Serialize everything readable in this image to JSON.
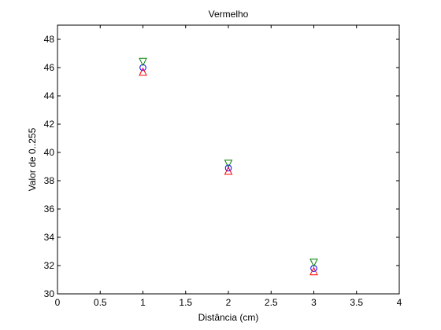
{
  "chart_data": {
    "type": "scatter",
    "title": "Vermelho",
    "xlabel": "Distância (cm)",
    "ylabel": "Valor de 0..255",
    "xlim": [
      0,
      4
    ],
    "ylim": [
      30,
      49
    ],
    "xticks": [
      0,
      0.5,
      1,
      1.5,
      2,
      2.5,
      3,
      3.5,
      4
    ],
    "yticks": [
      30,
      32,
      34,
      36,
      38,
      40,
      42,
      44,
      46,
      48
    ],
    "xtick_labels": [
      "0",
      "0.5",
      "1",
      "1.5",
      "2",
      "2.5",
      "3",
      "3.5",
      "4"
    ],
    "ytick_labels": [
      "30",
      "32",
      "34",
      "36",
      "38",
      "40",
      "42",
      "44",
      "46",
      "48"
    ],
    "grid": false,
    "series": [
      {
        "marker": "circle",
        "color": "#0000ff",
        "x": [
          1,
          2,
          3
        ],
        "y": [
          46.0,
          38.9,
          31.8
        ]
      },
      {
        "marker": "triangle-down",
        "color": "#008000",
        "x": [
          1,
          2,
          3
        ],
        "y": [
          46.4,
          39.2,
          32.2
        ]
      },
      {
        "marker": "triangle-up",
        "color": "#ff0000",
        "x": [
          1,
          2,
          3
        ],
        "y": [
          45.7,
          38.7,
          31.6
        ]
      },
      {
        "marker": "point",
        "color": "#bf00bf",
        "x": [
          1,
          2,
          3
        ],
        "y": [
          45.9,
          38.9,
          31.8
        ]
      }
    ]
  }
}
